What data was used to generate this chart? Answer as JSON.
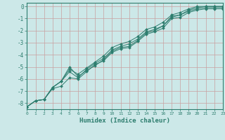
{
  "xlabel": "Humidex (Indice chaleur)",
  "bg_color": "#cce8e8",
  "line_color": "#2d7d6e",
  "grid_color": "#c8a0a0",
  "x": [
    0,
    1,
    2,
    3,
    4,
    5,
    6,
    7,
    8,
    9,
    10,
    11,
    12,
    13,
    14,
    15,
    16,
    17,
    18,
    19,
    20,
    21,
    22,
    23
  ],
  "series": [
    [
      -8.3,
      -7.8,
      -7.7,
      -6.7,
      -6.2,
      -5.0,
      -5.8,
      -5.3,
      -4.9,
      -4.4,
      -3.7,
      -3.4,
      -3.3,
      -2.8,
      -2.2,
      -2.0,
      -1.6,
      -0.9,
      -0.7,
      -0.4,
      -0.2,
      -0.1,
      -0.1,
      -0.1
    ],
    [
      -8.3,
      -7.8,
      -7.7,
      -6.7,
      -6.2,
      -5.4,
      -5.9,
      -5.2,
      -4.7,
      -4.3,
      -3.6,
      -3.3,
      -3.1,
      -2.7,
      -2.1,
      -1.9,
      -1.6,
      -0.8,
      -0.7,
      -0.3,
      -0.1,
      0.0,
      0.0,
      0.0
    ],
    [
      -8.3,
      -7.8,
      -7.7,
      -6.8,
      -6.6,
      -5.9,
      -6.0,
      -5.4,
      -4.8,
      -4.5,
      -3.8,
      -3.5,
      -3.4,
      -2.9,
      -2.3,
      -2.1,
      -1.8,
      -1.0,
      -0.9,
      -0.5,
      -0.3,
      -0.2,
      -0.2,
      -0.2
    ],
    [
      -8.3,
      -7.8,
      -7.7,
      -6.7,
      -6.2,
      -5.2,
      -5.6,
      -5.1,
      -4.6,
      -4.1,
      -3.4,
      -3.1,
      -2.9,
      -2.5,
      -1.9,
      -1.7,
      -1.3,
      -0.7,
      -0.5,
      -0.2,
      0.0,
      0.0,
      0.0,
      0.0
    ]
  ],
  "xlim": [
    0,
    23
  ],
  "ylim": [
    -8.5,
    0.3
  ],
  "yticks": [
    0,
    -1,
    -2,
    -3,
    -4,
    -5,
    -6,
    -7,
    -8
  ],
  "xticks": [
    0,
    1,
    2,
    3,
    4,
    5,
    6,
    7,
    8,
    9,
    10,
    11,
    12,
    13,
    14,
    15,
    16,
    17,
    18,
    19,
    20,
    21,
    22,
    23
  ]
}
